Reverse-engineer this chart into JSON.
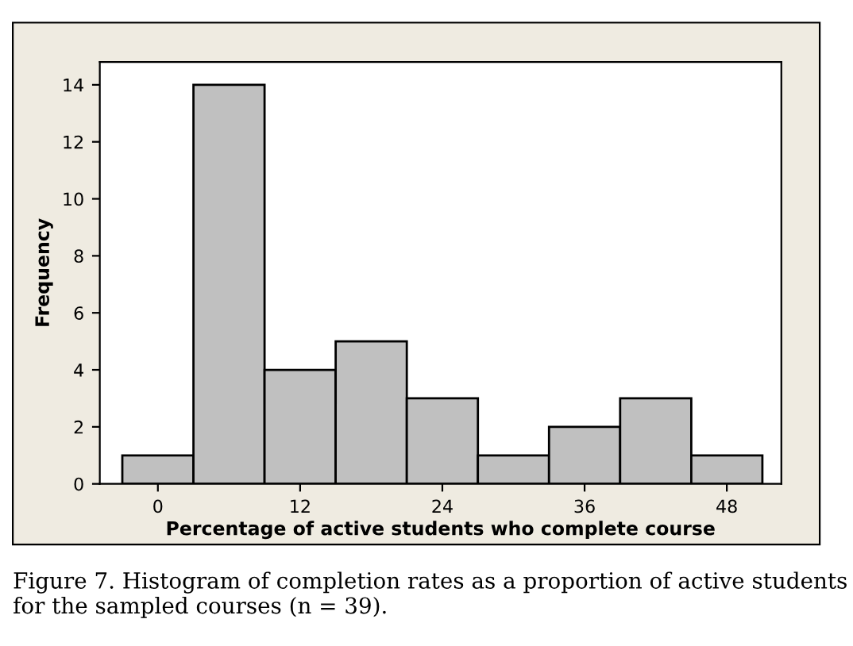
{
  "chart_data": {
    "type": "histogram",
    "xlabel": "Percentage of active students who complete course",
    "ylabel": "Frequency",
    "bins": [
      -3,
      3,
      9,
      15,
      21,
      27,
      33,
      39,
      45,
      51
    ],
    "values": [
      1,
      14,
      4,
      5,
      3,
      1,
      2,
      3,
      1
    ],
    "color": "#c0c0c0",
    "xlim": [
      -4.9,
      52.6
    ],
    "xticks": [
      0,
      12,
      24,
      36,
      48
    ],
    "ylim": [
      0,
      14.8
    ],
    "yticks": [
      0,
      2,
      4,
      6,
      8,
      10,
      12,
      14
    ],
    "grid": false,
    "annotations": [
      "Figure 7. Histogram of completion rates as a proportion of active students for the sampled courses (n = 39)."
    ]
  }
}
